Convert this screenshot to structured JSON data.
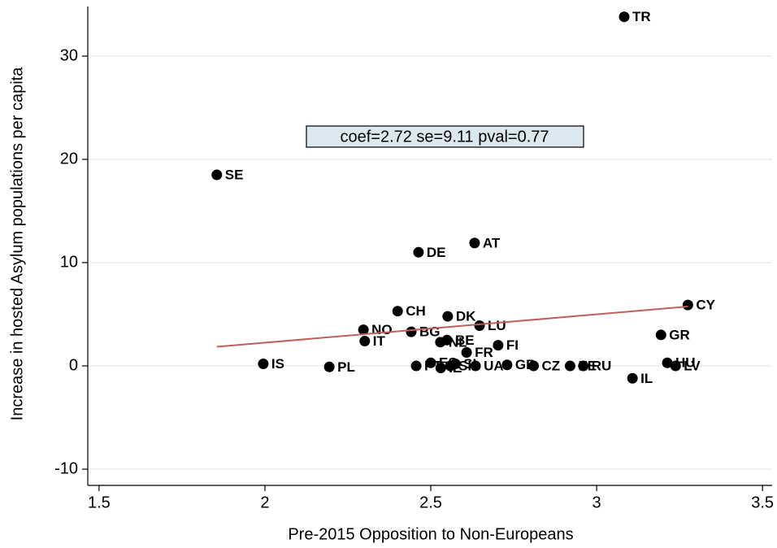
{
  "chart_data": {
    "type": "scatter",
    "x_label": "Pre-2015 Opposition to Non-Europeans",
    "y_label": "Increase in hosted Asylum populations per capita",
    "annotation": "coef=2.72 se=9.11 pval=0.77",
    "labels": [
      "TR",
      "SE",
      "AT",
      "DE",
      "CY",
      "CH",
      "DK",
      "LU",
      "NO",
      "BG",
      "GR",
      "IT",
      "NL",
      "BE",
      "FI",
      "FR",
      "IS",
      "PL",
      "HU",
      "LV",
      "IL",
      "PT",
      "ES",
      "IE",
      "SK",
      "SI",
      "UA",
      "GB",
      "CZ",
      "EE",
      "RU"
    ],
    "x": [
      3.083,
      1.855,
      2.632,
      2.463,
      3.275,
      2.4,
      2.551,
      2.647,
      2.297,
      2.441,
      3.194,
      2.301,
      2.529,
      2.549,
      2.703,
      2.608,
      1.995,
      2.194,
      3.213,
      3.238,
      3.108,
      2.456,
      2.5,
      2.53,
      2.559,
      2.574,
      2.635,
      2.73,
      2.81,
      2.92,
      2.96
    ],
    "y": [
      33.8,
      18.5,
      11.9,
      11.0,
      5.9,
      5.3,
      4.8,
      3.9,
      3.5,
      3.3,
      3.0,
      2.4,
      2.3,
      2.5,
      2.0,
      1.3,
      0.2,
      -0.1,
      0.3,
      0.0,
      -1.2,
      0.0,
      0.3,
      -0.2,
      0.0,
      0.2,
      0.0,
      0.1,
      0.0,
      0.0,
      0.0
    ],
    "color": "#000000",
    "fit": {
      "x": [
        1.855,
        3.275
      ],
      "y": [
        1.85,
        5.75
      ],
      "color": "#c0605a"
    },
    "xlim": [
      1.466,
      3.529
    ],
    "ylim": [
      -11.57,
      34.8
    ],
    "xticks": [
      1.5,
      2,
      2.5,
      3,
      3.5
    ],
    "yticks": [
      -10,
      0,
      10,
      20,
      30
    ],
    "grid": true
  }
}
